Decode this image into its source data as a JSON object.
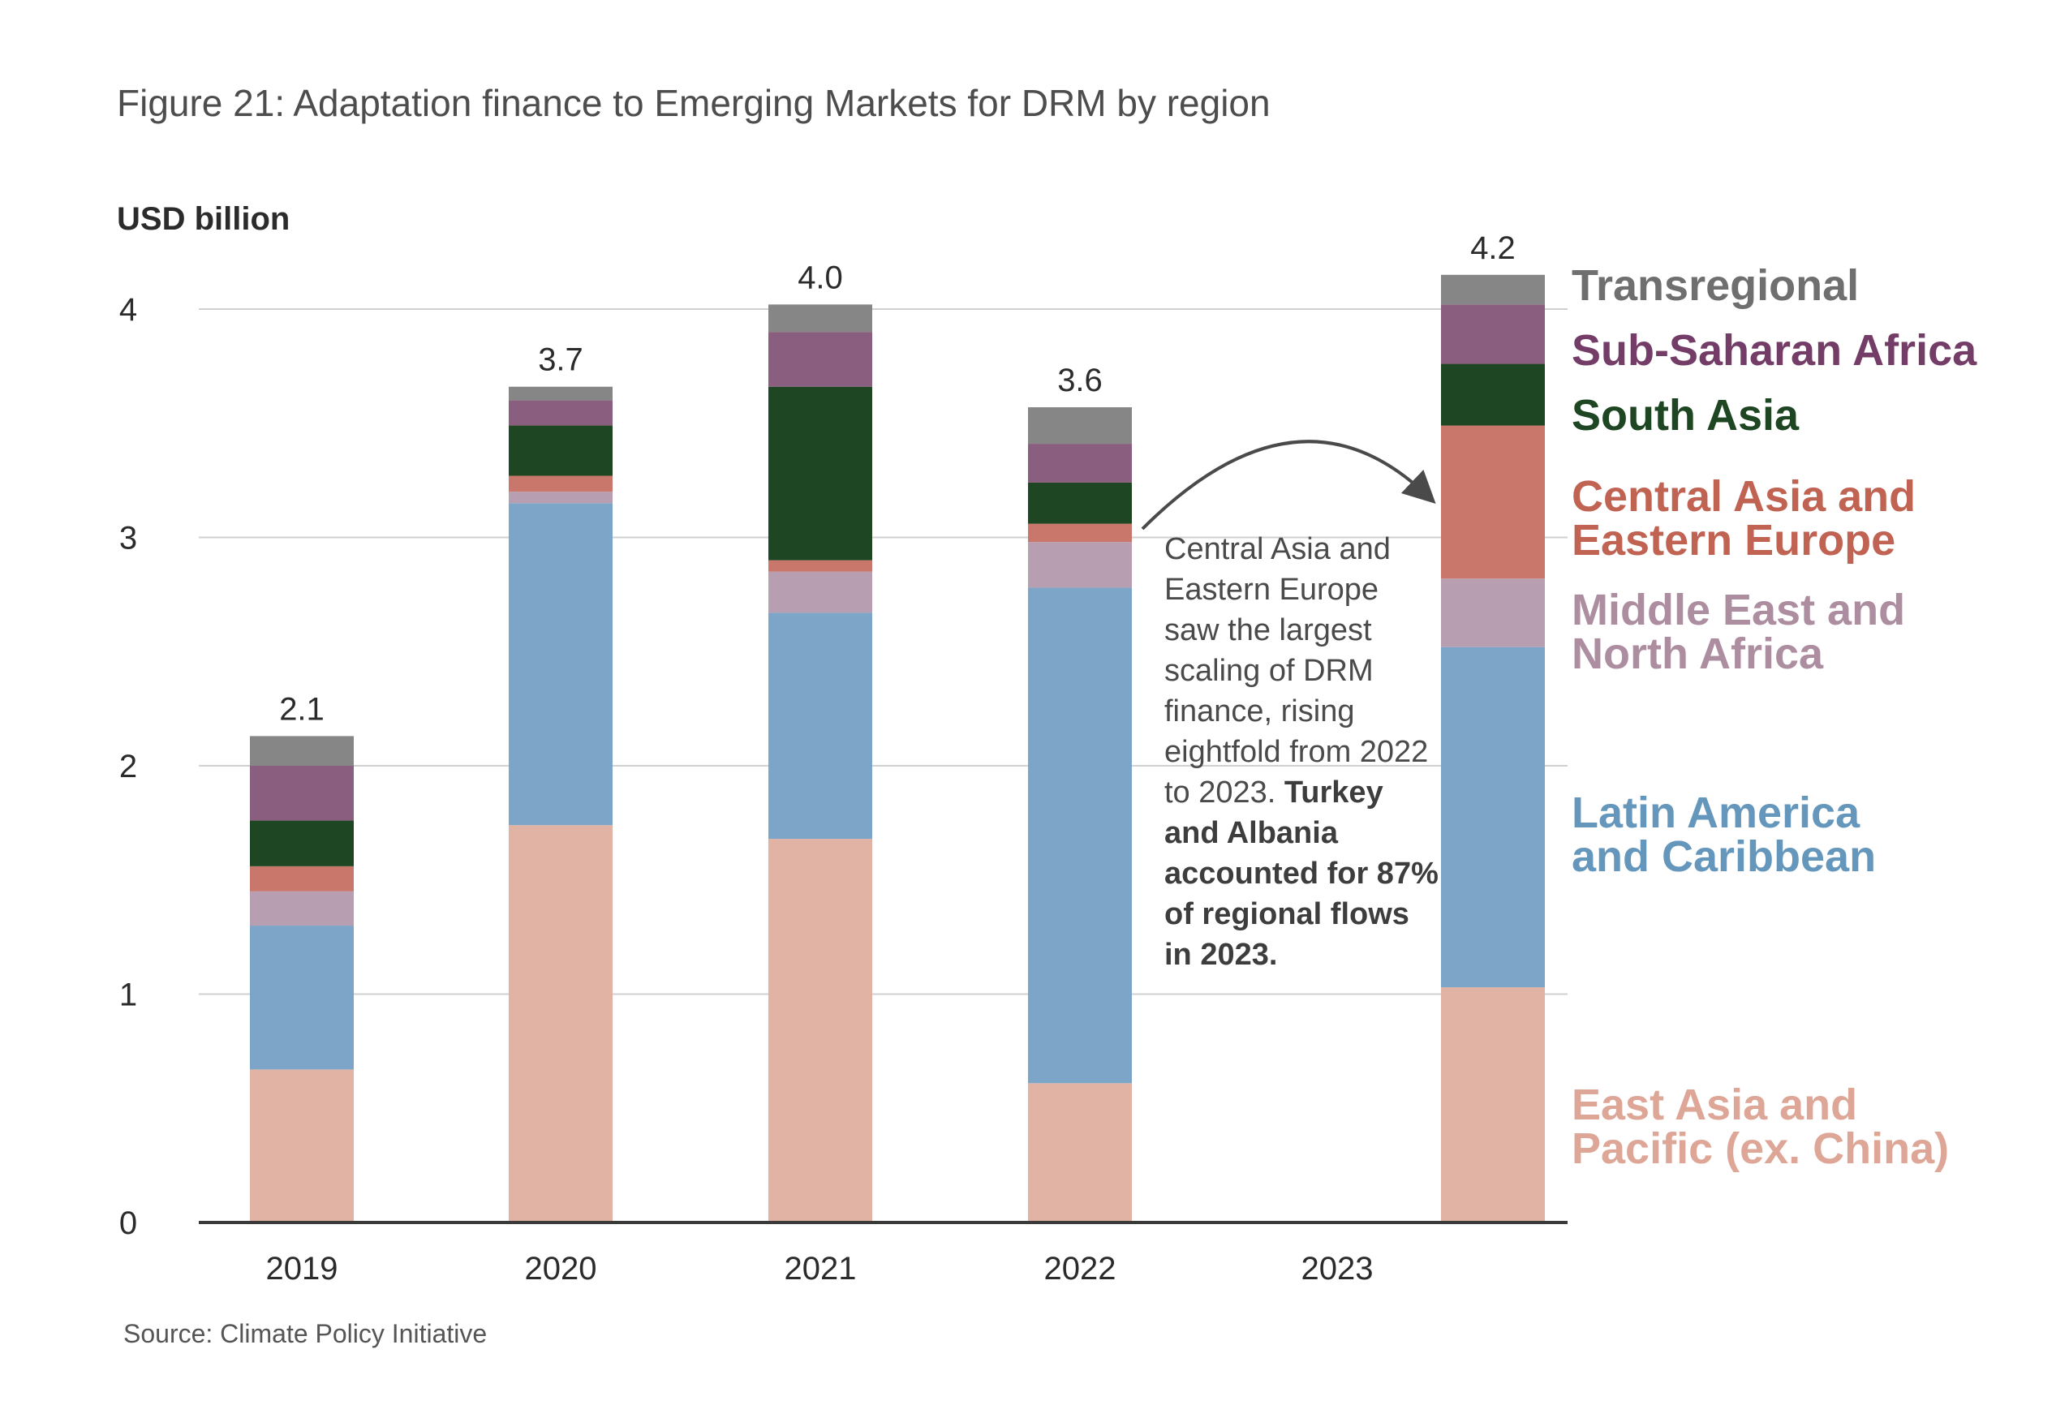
{
  "title": "Figure 21: Adaptation finance to Emerging Markets for DRM by region",
  "unit_label": "USD billion",
  "source": "Source: Climate Policy Initiative",
  "annotation": {
    "regular": "Central Asia and Eastern Europe saw the largest scaling of DRM finance, rising eightfold from 2022 to 2023.",
    "bold": "Turkey and Albania accounted for 87% of regional flows in 2023.",
    "arrow": "curved-arrow-from-2022-to-2023"
  },
  "chart_data": {
    "type": "bar",
    "stacked": true,
    "title": "Figure 21: Adaptation finance to Emerging Markets for DRM by region",
    "xlabel": "",
    "ylabel": "USD billion",
    "ylim": [
      0,
      4.2
    ],
    "yticks": [
      0,
      1,
      2,
      3,
      4
    ],
    "grid": true,
    "legend_placement": "right",
    "categories": [
      "2019",
      "2020",
      "2021",
      "2022",
      "2023"
    ],
    "totals_labels": [
      "2.1",
      "3.7",
      "4.0",
      "3.6",
      "4.2"
    ],
    "series": [
      {
        "name": "East Asia and Pacific (ex. China)",
        "color": "#e0b3a5",
        "label_color": "#dda696",
        "values": [
          0.67,
          1.74,
          1.68,
          0.61,
          1.03
        ]
      },
      {
        "name": "Latin America and Caribbean",
        "color": "#7da5c7",
        "label_color": "#6596bb",
        "values": [
          0.63,
          1.41,
          0.99,
          2.17,
          1.49
        ]
      },
      {
        "name": "Middle East and North Africa",
        "color": "#b89eb1",
        "label_color": "#ad8da0",
        "values": [
          0.15,
          0.05,
          0.18,
          0.2,
          0.3
        ]
      },
      {
        "name": "Central Asia and Eastern Europe",
        "color": "#c9776a",
        "label_color": "#c06352",
        "values": [
          0.11,
          0.07,
          0.05,
          0.08,
          0.67
        ]
      },
      {
        "name": "South Asia",
        "color": "#1f4623",
        "label_color": "#1f4623",
        "values": [
          0.2,
          0.22,
          0.76,
          0.18,
          0.27
        ]
      },
      {
        "name": "Sub-Saharan Africa",
        "color": "#8a5e7e",
        "label_color": "#733d67",
        "values": [
          0.24,
          0.11,
          0.24,
          0.17,
          0.26
        ]
      },
      {
        "name": "Transregional",
        "color": "#868686",
        "label_color": "#6f6f6f",
        "values": [
          0.13,
          0.06,
          0.12,
          0.16,
          0.13
        ]
      }
    ],
    "legend": [
      {
        "lines": [
          "Transregional"
        ],
        "color": "#6f6f6f"
      },
      {
        "lines": [
          "Sub-Saharan Africa"
        ],
        "color": "#733d67"
      },
      {
        "lines": [
          "South Asia"
        ],
        "color": "#1f4623"
      },
      {
        "lines": [
          "Central Asia and",
          "Eastern Europe"
        ],
        "color": "#c06352"
      },
      {
        "lines": [
          "Middle East and",
          "North Africa"
        ],
        "color": "#ad8da0"
      },
      {
        "lines": [
          "Latin America",
          "and Caribbean"
        ],
        "color": "#6596bb"
      },
      {
        "lines": [
          "East Asia and",
          "Pacific (ex. China)"
        ],
        "color": "#dda696"
      }
    ]
  }
}
